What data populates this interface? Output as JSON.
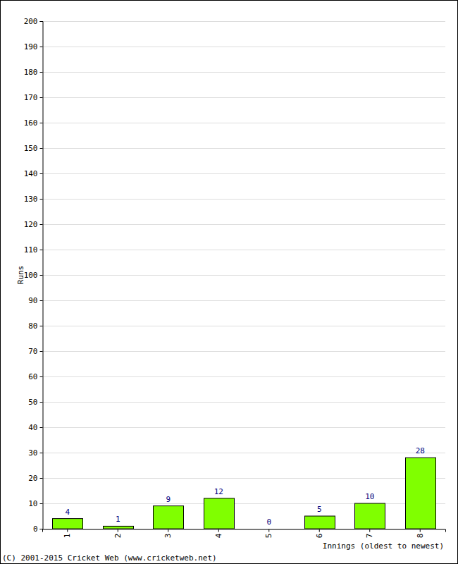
{
  "chart_data": {
    "type": "bar",
    "categories": [
      "1",
      "2",
      "3",
      "4",
      "5",
      "6",
      "7",
      "8"
    ],
    "values": [
      4,
      1,
      9,
      12,
      0,
      5,
      10,
      28
    ],
    "color": "#80ff00",
    "ylim": [
      0,
      200
    ],
    "yticks": [
      0,
      10,
      20,
      30,
      40,
      50,
      60,
      70,
      80,
      90,
      100,
      110,
      120,
      130,
      140,
      150,
      160,
      170,
      180,
      190,
      200
    ],
    "grid": true,
    "data_labels": true,
    "y_label": "Runs",
    "x_label": "Innings (oldest to newest)",
    "annotations": [
      "(C) 2001-2015 Cricket Web (www.cricketweb.net)"
    ]
  }
}
